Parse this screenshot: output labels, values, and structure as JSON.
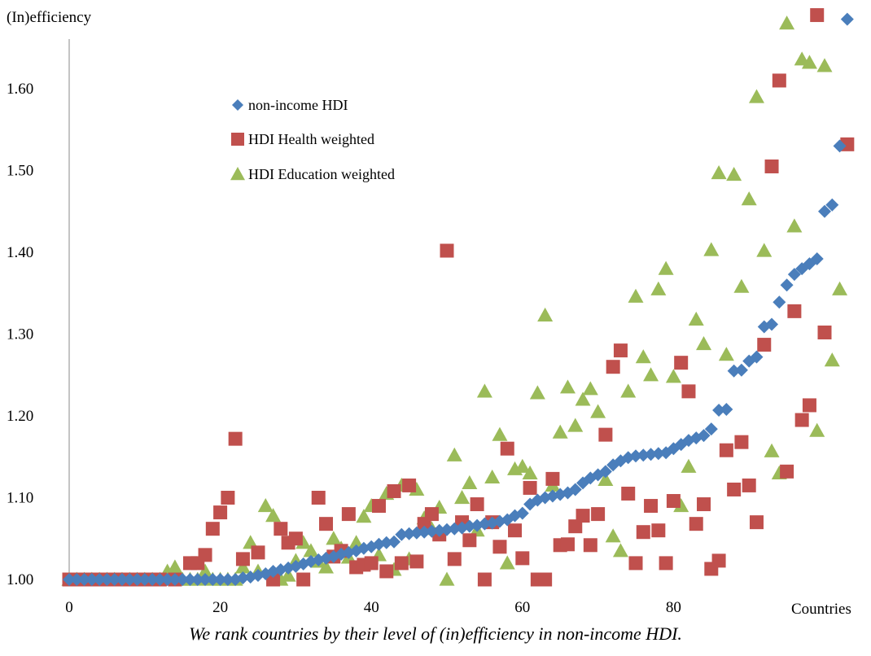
{
  "chart_data": {
    "type": "scatter",
    "ylabel": "(In)efficiency",
    "xlabel": "Countries",
    "xlim": [
      0,
      103
    ],
    "ylim": [
      1.0,
      1.69
    ],
    "xticks": [
      0,
      20,
      40,
      60,
      80
    ],
    "yticks": [
      "1.00",
      "1.10",
      "1.20",
      "1.30",
      "1.40",
      "1.50",
      "1.60"
    ],
    "grid": false,
    "legend_position": "top-left",
    "series": [
      {
        "name": "non-income HDI",
        "marker": "diamond",
        "color": "#4a7ebb",
        "points": [
          [
            0,
            1.0
          ],
          [
            1,
            1.0
          ],
          [
            2,
            1.0
          ],
          [
            3,
            1.0
          ],
          [
            4,
            1.0
          ],
          [
            5,
            1.0
          ],
          [
            6,
            1.0
          ],
          [
            7,
            1.0
          ],
          [
            8,
            1.0
          ],
          [
            9,
            1.0
          ],
          [
            10,
            1.0
          ],
          [
            11,
            1.0
          ],
          [
            12,
            1.0
          ],
          [
            13,
            1.0
          ],
          [
            14,
            1.0
          ],
          [
            15,
            1.0
          ],
          [
            16,
            1.0
          ],
          [
            17,
            1.0
          ],
          [
            18,
            1.0
          ],
          [
            19,
            1.0
          ],
          [
            20,
            1.0
          ],
          [
            21,
            1.0
          ],
          [
            22,
            1.0
          ],
          [
            23,
            1.002
          ],
          [
            24,
            1.003
          ],
          [
            25,
            1.005
          ],
          [
            26,
            1.007
          ],
          [
            27,
            1.01
          ],
          [
            28,
            1.012
          ],
          [
            29,
            1.014
          ],
          [
            30,
            1.016
          ],
          [
            31,
            1.019
          ],
          [
            32,
            1.022
          ],
          [
            33,
            1.024
          ],
          [
            34,
            1.026
          ],
          [
            35,
            1.028
          ],
          [
            36,
            1.031
          ],
          [
            37,
            1.033
          ],
          [
            38,
            1.035
          ],
          [
            39,
            1.038
          ],
          [
            40,
            1.04
          ],
          [
            41,
            1.043
          ],
          [
            42,
            1.045
          ],
          [
            43,
            1.046
          ],
          [
            44,
            1.055
          ],
          [
            45,
            1.056
          ],
          [
            46,
            1.057
          ],
          [
            47,
            1.058
          ],
          [
            48,
            1.059
          ],
          [
            49,
            1.06
          ],
          [
            50,
            1.061
          ],
          [
            51,
            1.062
          ],
          [
            52,
            1.063
          ],
          [
            53,
            1.065
          ],
          [
            54,
            1.066
          ],
          [
            55,
            1.068
          ],
          [
            56,
            1.069
          ],
          [
            57,
            1.071
          ],
          [
            58,
            1.073
          ],
          [
            59,
            1.078
          ],
          [
            60,
            1.081
          ],
          [
            61,
            1.092
          ],
          [
            62,
            1.097
          ],
          [
            63,
            1.1
          ],
          [
            64,
            1.102
          ],
          [
            65,
            1.104
          ],
          [
            66,
            1.106
          ],
          [
            67,
            1.11
          ],
          [
            68,
            1.118
          ],
          [
            69,
            1.124
          ],
          [
            70,
            1.128
          ],
          [
            71,
            1.132
          ],
          [
            72,
            1.14
          ],
          [
            73,
            1.145
          ],
          [
            74,
            1.149
          ],
          [
            75,
            1.151
          ],
          [
            76,
            1.152
          ],
          [
            77,
            1.153
          ],
          [
            78,
            1.154
          ],
          [
            79,
            1.155
          ],
          [
            80,
            1.16
          ],
          [
            81,
            1.165
          ],
          [
            82,
            1.17
          ],
          [
            83,
            1.173
          ],
          [
            84,
            1.176
          ],
          [
            85,
            1.184
          ],
          [
            86,
            1.207
          ],
          [
            87,
            1.208
          ],
          [
            88,
            1.255
          ],
          [
            89,
            1.256
          ],
          [
            90,
            1.267
          ],
          [
            91,
            1.272
          ],
          [
            92,
            1.309
          ],
          [
            93,
            1.312
          ],
          [
            94,
            1.339
          ],
          [
            95,
            1.36
          ],
          [
            96,
            1.373
          ],
          [
            97,
            1.38
          ],
          [
            98,
            1.386
          ],
          [
            99,
            1.392
          ],
          [
            100,
            1.45
          ],
          [
            101,
            1.458
          ],
          [
            102,
            1.53
          ],
          [
            103,
            1.685
          ]
        ]
      },
      {
        "name": "HDI Health weighted",
        "marker": "square",
        "color": "#c0504d",
        "points": [
          [
            0,
            1.0
          ],
          [
            1,
            1.0
          ],
          [
            2,
            1.0
          ],
          [
            3,
            1.0
          ],
          [
            4,
            1.0
          ],
          [
            5,
            1.0
          ],
          [
            6,
            1.0
          ],
          [
            7,
            1.0
          ],
          [
            8,
            1.0
          ],
          [
            9,
            1.0
          ],
          [
            10,
            1.0
          ],
          [
            11,
            1.0
          ],
          [
            12,
            1.0
          ],
          [
            14,
            1.0
          ],
          [
            16,
            1.02
          ],
          [
            17,
            1.02
          ],
          [
            18,
            1.03
          ],
          [
            19,
            1.062
          ],
          [
            20,
            1.082
          ],
          [
            21,
            1.1
          ],
          [
            22,
            1.172
          ],
          [
            23,
            1.025
          ],
          [
            25,
            1.033
          ],
          [
            27,
            1.0
          ],
          [
            28,
            1.062
          ],
          [
            29,
            1.045
          ],
          [
            30,
            1.05
          ],
          [
            31,
            1.0
          ],
          [
            33,
            1.1
          ],
          [
            34,
            1.068
          ],
          [
            35,
            1.028
          ],
          [
            36,
            1.035
          ],
          [
            37,
            1.08
          ],
          [
            38,
            1.015
          ],
          [
            39,
            1.018
          ],
          [
            40,
            1.02
          ],
          [
            41,
            1.09
          ],
          [
            42,
            1.01
          ],
          [
            43,
            1.108
          ],
          [
            44,
            1.02
          ],
          [
            45,
            1.115
          ],
          [
            46,
            1.022
          ],
          [
            47,
            1.068
          ],
          [
            48,
            1.08
          ],
          [
            49,
            1.055
          ],
          [
            50,
            1.402
          ],
          [
            51,
            1.025
          ],
          [
            52,
            1.07
          ],
          [
            53,
            1.048
          ],
          [
            54,
            1.092
          ],
          [
            55,
            1.0
          ],
          [
            56,
            1.07
          ],
          [
            57,
            1.04
          ],
          [
            58,
            1.16
          ],
          [
            59,
            1.06
          ],
          [
            60,
            1.026
          ],
          [
            61,
            1.112
          ],
          [
            62,
            1.0
          ],
          [
            63,
            1.0
          ],
          [
            64,
            1.123
          ],
          [
            65,
            1.042
          ],
          [
            66,
            1.043
          ],
          [
            67,
            1.065
          ],
          [
            68,
            1.078
          ],
          [
            69,
            1.042
          ],
          [
            70,
            1.08
          ],
          [
            71,
            1.177
          ],
          [
            72,
            1.26
          ],
          [
            73,
            1.28
          ],
          [
            74,
            1.105
          ],
          [
            75,
            1.02
          ],
          [
            76,
            1.058
          ],
          [
            77,
            1.09
          ],
          [
            78,
            1.06
          ],
          [
            79,
            1.02
          ],
          [
            80,
            1.096
          ],
          [
            81,
            1.265
          ],
          [
            82,
            1.23
          ],
          [
            83,
            1.068
          ],
          [
            84,
            1.092
          ],
          [
            85,
            1.013
          ],
          [
            86,
            1.023
          ],
          [
            87,
            1.158
          ],
          [
            88,
            1.11
          ],
          [
            89,
            1.168
          ],
          [
            90,
            1.115
          ],
          [
            91,
            1.07
          ],
          [
            92,
            1.287
          ],
          [
            93,
            1.505
          ],
          [
            94,
            1.61
          ],
          [
            95,
            1.132
          ],
          [
            96,
            1.328
          ],
          [
            97,
            1.195
          ],
          [
            98,
            1.213
          ],
          [
            99,
            1.69
          ],
          [
            100,
            1.302
          ],
          [
            103,
            1.532
          ]
        ]
      },
      {
        "name": "HDI Education weighted",
        "marker": "triangle",
        "color": "#9bbb59",
        "points": [
          [
            0,
            1.0
          ],
          [
            1,
            1.0
          ],
          [
            2,
            1.0
          ],
          [
            3,
            1.0
          ],
          [
            4,
            1.0
          ],
          [
            5,
            1.0
          ],
          [
            6,
            1.0
          ],
          [
            7,
            1.0
          ],
          [
            8,
            1.0
          ],
          [
            9,
            1.0
          ],
          [
            10,
            1.0
          ],
          [
            11,
            1.0
          ],
          [
            12,
            1.0
          ],
          [
            13,
            1.01
          ],
          [
            14,
            1.015
          ],
          [
            15,
            1.0
          ],
          [
            16,
            1.0
          ],
          [
            17,
            1.0
          ],
          [
            18,
            1.01
          ],
          [
            19,
            1.0
          ],
          [
            20,
            1.0
          ],
          [
            21,
            1.0
          ],
          [
            22,
            1.0
          ],
          [
            23,
            1.015
          ],
          [
            24,
            1.045
          ],
          [
            25,
            1.01
          ],
          [
            26,
            1.09
          ],
          [
            27,
            1.078
          ],
          [
            28,
            1.0
          ],
          [
            29,
            1.005
          ],
          [
            30,
            1.023
          ],
          [
            31,
            1.045
          ],
          [
            32,
            1.035
          ],
          [
            33,
            1.022
          ],
          [
            34,
            1.015
          ],
          [
            35,
            1.05
          ],
          [
            36,
            1.038
          ],
          [
            37,
            1.027
          ],
          [
            38,
            1.045
          ],
          [
            39,
            1.077
          ],
          [
            40,
            1.09
          ],
          [
            41,
            1.03
          ],
          [
            42,
            1.105
          ],
          [
            43,
            1.012
          ],
          [
            44,
            1.115
          ],
          [
            45,
            1.025
          ],
          [
            46,
            1.11
          ],
          [
            47,
            1.075
          ],
          [
            48,
            1.062
          ],
          [
            49,
            1.088
          ],
          [
            50,
            1.0
          ],
          [
            51,
            1.152
          ],
          [
            52,
            1.1
          ],
          [
            53,
            1.118
          ],
          [
            54,
            1.06
          ],
          [
            55,
            1.23
          ],
          [
            56,
            1.125
          ],
          [
            57,
            1.177
          ],
          [
            58,
            1.02
          ],
          [
            59,
            1.135
          ],
          [
            60,
            1.138
          ],
          [
            61,
            1.13
          ],
          [
            62,
            1.228
          ],
          [
            63,
            1.323
          ],
          [
            64,
            1.115
          ],
          [
            65,
            1.18
          ],
          [
            66,
            1.235
          ],
          [
            67,
            1.188
          ],
          [
            68,
            1.22
          ],
          [
            69,
            1.233
          ],
          [
            70,
            1.205
          ],
          [
            71,
            1.122
          ],
          [
            72,
            1.053
          ],
          [
            73,
            1.035
          ],
          [
            74,
            1.23
          ],
          [
            75,
            1.346
          ],
          [
            76,
            1.272
          ],
          [
            77,
            1.25
          ],
          [
            78,
            1.355
          ],
          [
            79,
            1.38
          ],
          [
            80,
            1.248
          ],
          [
            81,
            1.09
          ],
          [
            82,
            1.138
          ],
          [
            83,
            1.318
          ],
          [
            84,
            1.288
          ],
          [
            85,
            1.403
          ],
          [
            86,
            1.497
          ],
          [
            87,
            1.275
          ],
          [
            88,
            1.495
          ],
          [
            89,
            1.358
          ],
          [
            90,
            1.465
          ],
          [
            91,
            1.59
          ],
          [
            92,
            1.402
          ],
          [
            93,
            1.157
          ],
          [
            94,
            1.13
          ],
          [
            95,
            1.68
          ],
          [
            96,
            1.432
          ],
          [
            97,
            1.636
          ],
          [
            98,
            1.632
          ],
          [
            99,
            1.182
          ],
          [
            100,
            1.628
          ],
          [
            101,
            1.268
          ],
          [
            102,
            1.355
          ]
        ]
      }
    ]
  },
  "caption": "We rank countries by their level of (in)efficiency in non-income HDI."
}
